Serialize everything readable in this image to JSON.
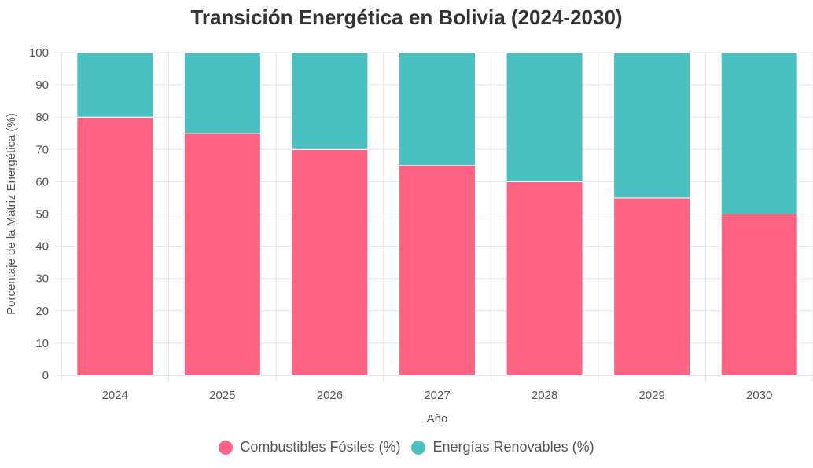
{
  "chart_data": {
    "type": "bar",
    "stacked": true,
    "title": "Transición Energética en Bolivia (2024-2030)",
    "xlabel": "Año",
    "ylabel": "Porcentaje de la Matriz Energética (%)",
    "ylim": [
      0,
      100
    ],
    "yticks": [
      0,
      10,
      20,
      30,
      40,
      50,
      60,
      70,
      80,
      90,
      100
    ],
    "grid": true,
    "legend_position": "bottom",
    "categories": [
      "2024",
      "2025",
      "2026",
      "2027",
      "2028",
      "2029",
      "2030"
    ],
    "series": [
      {
        "name": "Combustibles Fósiles (%)",
        "color": "#ff6384",
        "values": [
          80,
          75,
          70,
          65,
          60,
          55,
          50
        ]
      },
      {
        "name": "Energías Renovables (%)",
        "color": "#4bc0c0",
        "values": [
          20,
          25,
          30,
          35,
          40,
          45,
          50
        ]
      }
    ]
  }
}
